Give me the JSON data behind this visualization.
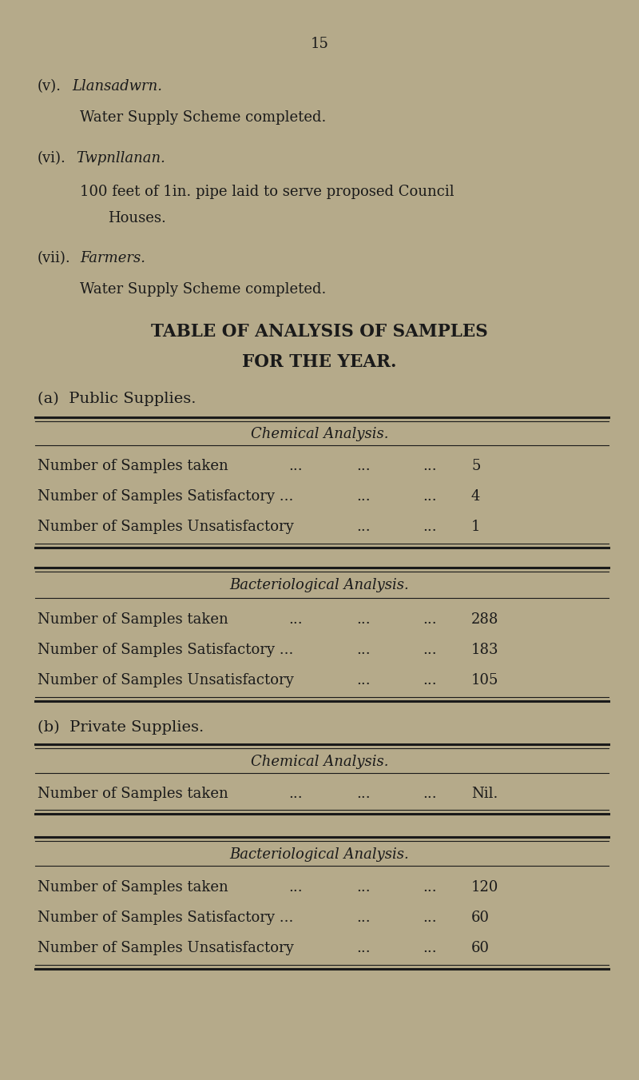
{
  "bg_color": "#b5aa8a",
  "text_color": "#1a1a1a",
  "page_number": "15",
  "line1_label": "(v).",
  "line1_italic": "Llansadwrn.",
  "line2": "Water Supply Scheme completed.",
  "line3_label": "(vi).",
  "line3_italic": "Twpnllanan.",
  "line4a": "100 feet of 1in. pipe laid to serve proposed Council",
  "line4b": "Houses.",
  "line5_label": "(vii).",
  "line5_italic": "Farmers.",
  "line6": "Water Supply Scheme completed.",
  "table_title1": "TABLE OF ANALYSIS OF SAMPLES",
  "table_title2": "FOR THE YEAR.",
  "section_a": "(a)  Public Supplies.",
  "chem_analysis": "Chemical Analysis.",
  "bact_analysis": "Bacteriological Analysis.",
  "section_b": "(b)  Private Supplies."
}
